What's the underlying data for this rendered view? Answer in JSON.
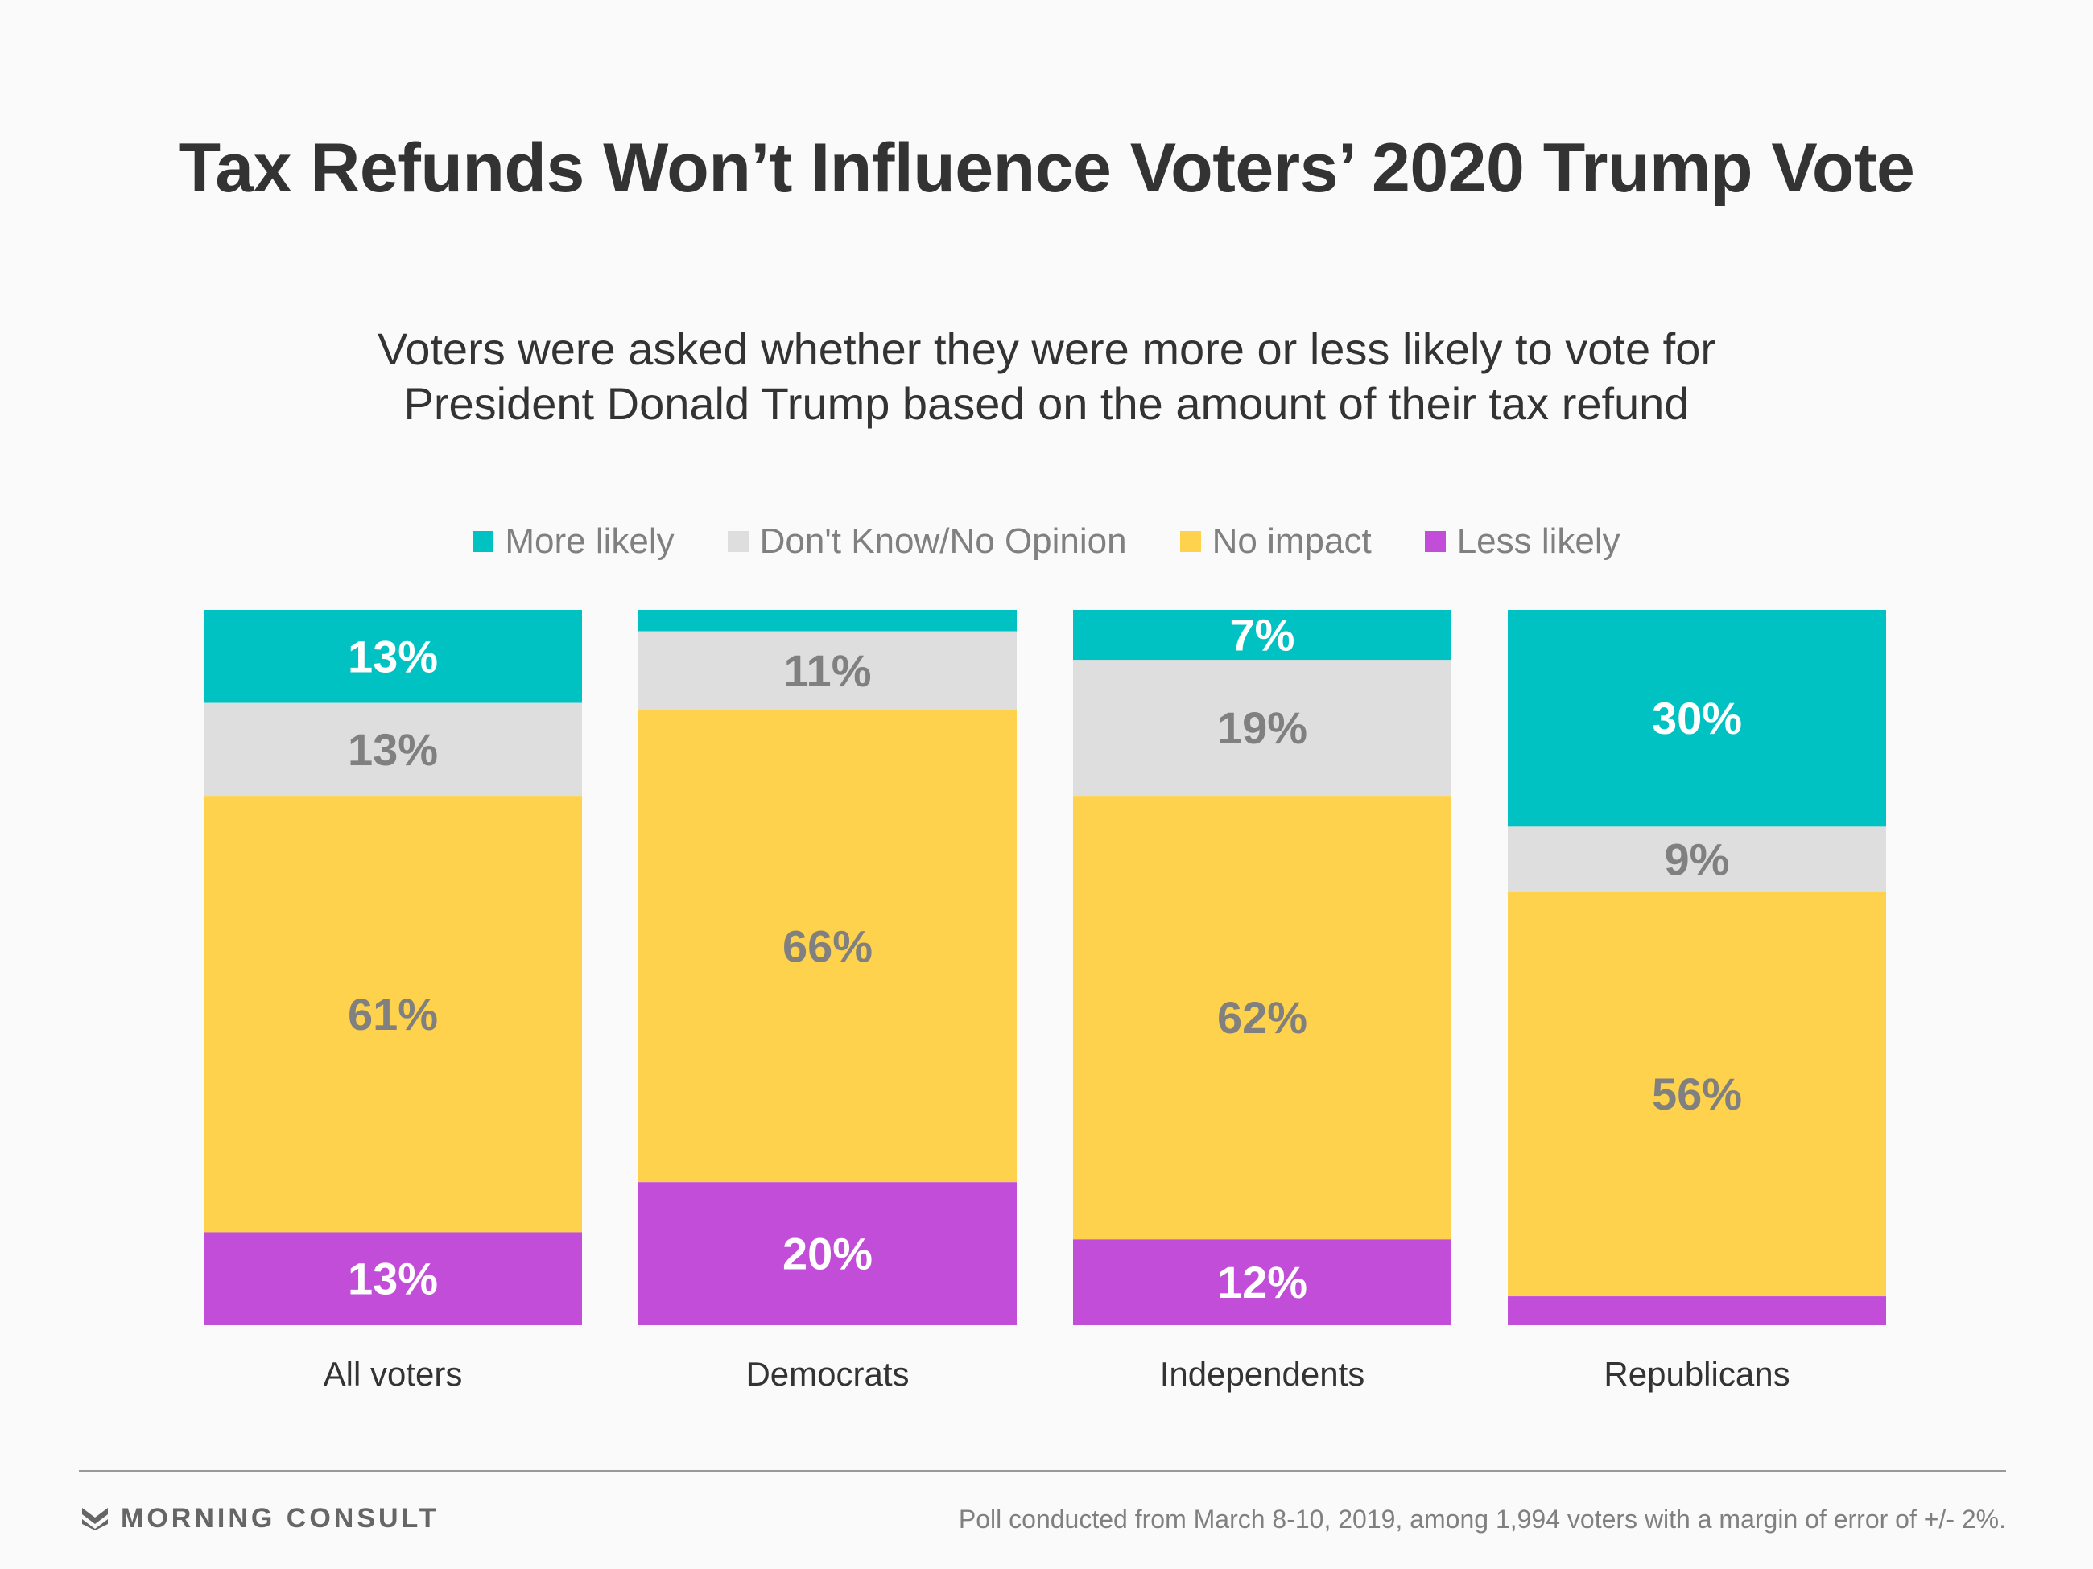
{
  "header": {
    "title": "Tax Refunds Won’t Influence Voters’ 2020 Trump Vote",
    "subtitle_line1": "Voters were asked whether they were more or less likely to vote for",
    "subtitle_line2": "President Donald Trump based on the amount of their tax refund"
  },
  "chart_data": {
    "type": "bar",
    "stacked": true,
    "orientation": "vertical",
    "categories": [
      "All voters",
      "Democrats",
      "Independents",
      "Republicans"
    ],
    "series": [
      {
        "name": "More likely",
        "color": "#00c2c2",
        "label_color": "#ffffff",
        "values": [
          13,
          3,
          7,
          30
        ],
        "labels": [
          "13%",
          "",
          "7%",
          "30%"
        ]
      },
      {
        "name": "Don't Know/No Opinion",
        "color": "#dedede",
        "label_color": "#808080",
        "values": [
          13,
          11,
          19,
          9
        ],
        "labels": [
          "13%",
          "11%",
          "19%",
          "9%"
        ]
      },
      {
        "name": "No impact",
        "color": "#ffd24d",
        "label_color": "#808080",
        "values": [
          61,
          66,
          62,
          56
        ],
        "labels": [
          "61%",
          "66%",
          "62%",
          "56%"
        ]
      },
      {
        "name": "Less likely",
        "color": "#c24dd9",
        "label_color": "#ffffff",
        "values": [
          13,
          20,
          12,
          4
        ],
        "labels": [
          "13%",
          "20%",
          "12%",
          ""
        ]
      }
    ],
    "legend_position": "top-center",
    "grid": false
  },
  "footer": {
    "brand": "MORNING CONSULT",
    "note": "Poll conducted from March 8-10, 2019, among 1,994 voters with a margin of error of +/- 2%."
  }
}
